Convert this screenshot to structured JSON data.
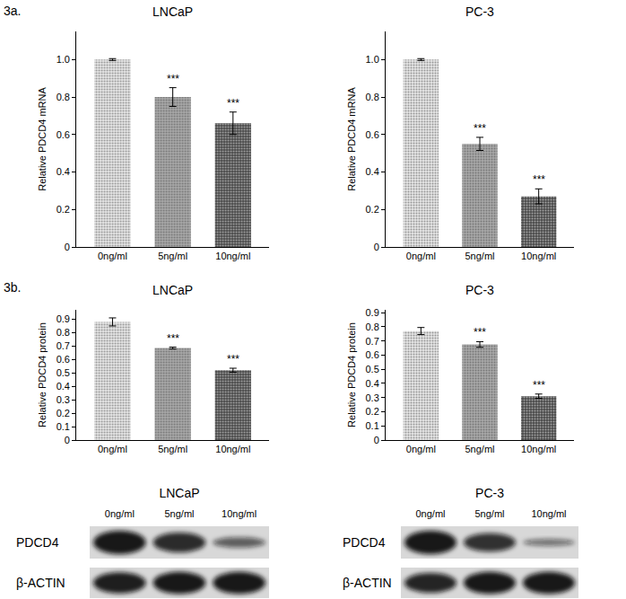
{
  "panel_labels": [
    "3a.",
    "3b."
  ],
  "chart_data": [
    {
      "type": "bar",
      "title": "LNCaP",
      "y_label": "Relative PDCD4 mRNA",
      "categories": [
        "0ng/ml",
        "5ng/ml",
        "10ng/ml"
      ],
      "values": [
        1.0,
        0.8,
        0.66
      ],
      "errors": [
        0.005,
        0.05,
        0.06
      ],
      "significance": [
        null,
        "***",
        "***"
      ],
      "colors": [
        "#e6e6e6",
        "#a9a9a9",
        "#4a4a4a"
      ],
      "ylim": [
        0,
        1.15
      ],
      "yticks": [
        0,
        0.2,
        0.4,
        0.6,
        0.8,
        {
          "value": 1.0,
          "label": "1.0"
        }
      ],
      "grid": false
    },
    {
      "type": "bar",
      "title": "PC-3",
      "y_label": "Relative PDCD4 mRNA",
      "categories": [
        "0ng/ml",
        "5ng/ml",
        "10ng/ml"
      ],
      "values": [
        1.0,
        0.55,
        0.27
      ],
      "errors": [
        0.005,
        0.035,
        0.04
      ],
      "significance": [
        null,
        "***",
        "***"
      ],
      "colors": [
        "#e6e6e6",
        "#a9a9a9",
        "#4a4a4a"
      ],
      "ylim": [
        0,
        1.15
      ],
      "yticks": [
        0,
        0.2,
        0.4,
        0.6,
        0.8,
        {
          "value": 1.0,
          "label": "1.0"
        }
      ],
      "grid": false
    },
    {
      "type": "bar",
      "title": "LNCaP",
      "y_label": "Relative PDCD4 protein",
      "categories": [
        "0ng/ml",
        "5ng/ml",
        "10ng/ml"
      ],
      "values": [
        0.88,
        0.685,
        0.52
      ],
      "errors": [
        0.03,
        0.007,
        0.015
      ],
      "significance": [
        null,
        "***",
        "***"
      ],
      "colors": [
        "#e6e6e6",
        "#a9a9a9",
        "#4a4a4a"
      ],
      "ylim": [
        0,
        0.97
      ],
      "yticks": [
        0,
        0.1,
        0.2,
        0.3,
        0.4,
        0.5,
        0.6,
        0.7,
        0.8,
        0.9
      ],
      "grid": false
    },
    {
      "type": "bar",
      "title": "PC-3",
      "y_label": "Relative PDCD4 protein",
      "categories": [
        "0ng/ml",
        "5ng/ml",
        "10ng/ml"
      ],
      "values": [
        0.77,
        0.675,
        0.31
      ],
      "errors": [
        0.025,
        0.02,
        0.015
      ],
      "significance": [
        null,
        "***",
        "***"
      ],
      "colors": [
        "#e6e6e6",
        "#a9a9a9",
        "#4a4a4a"
      ],
      "ylim": [
        0,
        0.92
      ],
      "yticks": [
        0,
        0.1,
        0.2,
        0.3,
        0.4,
        0.5,
        0.6,
        0.7,
        0.8,
        0.9
      ],
      "grid": false
    }
  ],
  "blots": [
    {
      "title": "LNCaP",
      "lanes": [
        "0ng/ml",
        "5ng/ml",
        "10ng/ml"
      ],
      "rows": [
        {
          "label": "PDCD4",
          "intensity": [
            1.0,
            0.85,
            0.45
          ]
        },
        {
          "label": "β-ACTIN",
          "intensity": [
            0.95,
            1.0,
            1.0
          ]
        }
      ]
    },
    {
      "title": "PC-3",
      "lanes": [
        "0ng/ml",
        "5ng/ml",
        "10ng/ml"
      ],
      "rows": [
        {
          "label": "PDCD4",
          "intensity": [
            1.0,
            0.8,
            0.3
          ]
        },
        {
          "label": "β-ACTIN",
          "intensity": [
            0.9,
            1.0,
            1.0
          ]
        }
      ]
    }
  ]
}
